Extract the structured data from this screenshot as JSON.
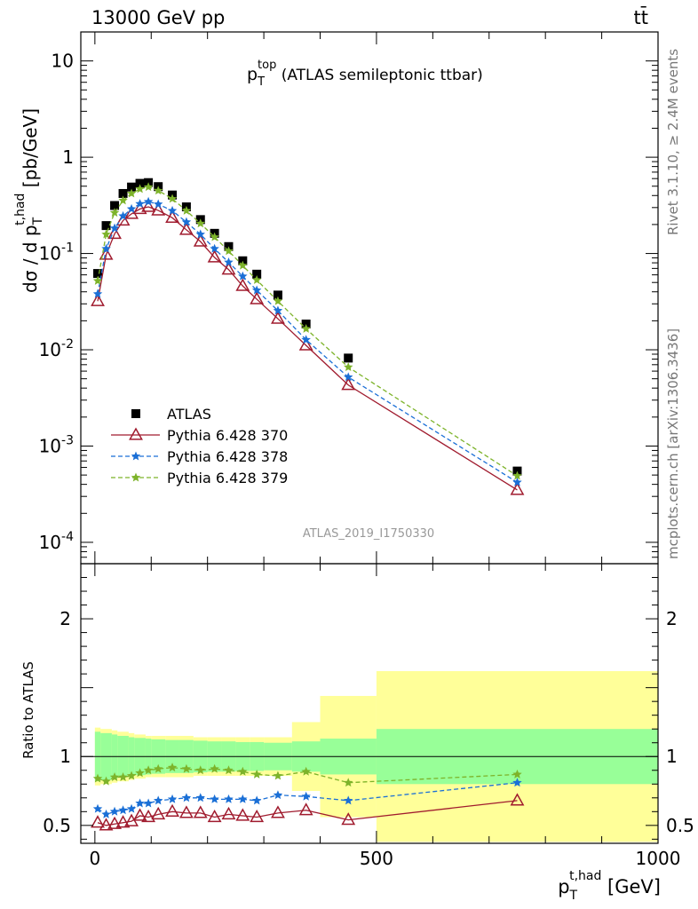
{
  "header": {
    "left": "13000 GeV pp",
    "right": "tt̄"
  },
  "side_text": {
    "upper": "Rivet 3.1.10, ≥ 2.4M events",
    "lower": "mcplots.cern.ch [arXiv:1306.3436]"
  },
  "watermark": "ATLAS_2019_I1750330",
  "colors": {
    "atlas": "#000000",
    "p370": "#a01b2e",
    "p378": "#1a6fd6",
    "p379": "#7db32a",
    "band_stat": "#98ff98",
    "band_total": "#ffff99"
  },
  "chart_data": [
    {
      "type": "scatter",
      "title": "p_T^top (ATLAS semileptonic ttbar)",
      "title_parts": {
        "p": "p",
        "sub": "T",
        "sup": "top",
        "rest": " (ATLAS semileptonic ttbar)"
      },
      "ylabel": "dσ / d p_T^t,had [pb/GeV]",
      "y_scale": "log",
      "ylim": [
        6e-05,
        20
      ],
      "xlim": [
        -25,
        1000
      ],
      "y_ticks": [
        {
          "v": 0.0001,
          "base": "10",
          "exp": "-4"
        },
        {
          "v": 0.001,
          "base": "10",
          "exp": "-3"
        },
        {
          "v": 0.01,
          "base": "10",
          "exp": "-2"
        },
        {
          "v": 0.1,
          "base": "10",
          "exp": "-1"
        },
        {
          "v": 1,
          "base": "1",
          "exp": ""
        },
        {
          "v": 10,
          "base": "10",
          "exp": ""
        }
      ],
      "x": [
        5,
        20,
        35,
        50,
        65,
        80,
        95,
        112.5,
        137.5,
        162.5,
        187.5,
        212.5,
        237.5,
        262.5,
        287.5,
        325,
        375,
        450,
        750
      ],
      "series": [
        {
          "name": "ATLAS",
          "style": "markers-square",
          "values": [
            0.062,
            0.195,
            0.315,
            0.42,
            0.49,
            0.535,
            0.545,
            0.495,
            0.405,
            0.305,
            0.225,
            0.162,
            0.118,
            0.084,
            0.061,
            0.037,
            0.0185,
            0.0082,
            0.00055
          ]
        },
        {
          "name": "Pythia 6.428 370",
          "style": "solid-triangle",
          "values": [
            0.032,
            0.097,
            0.16,
            0.22,
            0.258,
            0.29,
            0.305,
            0.28,
            0.235,
            0.176,
            0.133,
            0.091,
            0.068,
            0.046,
            0.0335,
            0.021,
            0.0111,
            0.0043,
            0.00035
          ]
        },
        {
          "name": "Pythia 6.428 378",
          "style": "dashed-star",
          "values": [
            0.038,
            0.112,
            0.183,
            0.245,
            0.29,
            0.328,
            0.345,
            0.325,
            0.278,
            0.212,
            0.158,
            0.112,
            0.081,
            0.058,
            0.0415,
            0.0255,
            0.0127,
            0.0052,
            0.00042
          ]
        },
        {
          "name": "Pythia 6.428 379",
          "style": "dashed-star",
          "values": [
            0.052,
            0.158,
            0.265,
            0.355,
            0.42,
            0.468,
            0.49,
            0.45,
            0.37,
            0.278,
            0.205,
            0.148,
            0.106,
            0.075,
            0.053,
            0.032,
            0.0165,
            0.0066,
            0.00049
          ]
        }
      ],
      "legend": {
        "position": "middle-left",
        "entries": [
          "ATLAS",
          "Pythia 6.428 370",
          "Pythia 6.428 378",
          "Pythia 6.428 379"
        ]
      }
    },
    {
      "type": "line",
      "ylabel": "Ratio to ATLAS",
      "ylim": [
        0.37,
        2.4
      ],
      "xlim": [
        -25,
        1000
      ],
      "xlabel": "p_T^t,had [GeV]",
      "xlabel_parts": {
        "p": "p",
        "sub": "T",
        "sup": "t,had",
        "rest": " [GeV]"
      },
      "x_ticks": [
        0,
        500,
        1000
      ],
      "y_ticks": [
        0.5,
        1,
        2
      ],
      "reference": 1,
      "bands": {
        "edges": [
          0,
          10,
          30,
          40,
          60,
          70,
          90,
          100,
          125,
          150,
          175,
          200,
          225,
          250,
          275,
          300,
          350,
          400,
          500,
          1000
        ],
        "stat": [
          0.18,
          0.17,
          0.16,
          0.15,
          0.14,
          0.135,
          0.13,
          0.125,
          0.12,
          0.12,
          0.115,
          0.11,
          0.11,
          0.105,
          0.105,
          0.1,
          0.11,
          0.13,
          0.2
        ],
        "total": [
          0.21,
          0.2,
          0.19,
          0.18,
          0.17,
          0.16,
          0.15,
          0.15,
          0.15,
          0.15,
          0.14,
          0.14,
          0.14,
          0.14,
          0.14,
          0.14,
          0.25,
          0.44,
          0.62
        ]
      },
      "x": [
        5,
        20,
        35,
        50,
        65,
        80,
        95,
        112.5,
        137.5,
        162.5,
        187.5,
        212.5,
        237.5,
        262.5,
        287.5,
        325,
        375,
        450,
        750
      ],
      "series": [
        {
          "name": "Pythia 6.428 370",
          "values": [
            0.52,
            0.5,
            0.51,
            0.52,
            0.53,
            0.57,
            0.56,
            0.58,
            0.6,
            0.59,
            0.59,
            0.56,
            0.58,
            0.57,
            0.56,
            0.59,
            0.61,
            0.54,
            0.68
          ]
        },
        {
          "name": "Pythia 6.428 378",
          "values": [
            0.62,
            0.58,
            0.6,
            0.61,
            0.62,
            0.66,
            0.66,
            0.68,
            0.69,
            0.7,
            0.7,
            0.69,
            0.69,
            0.69,
            0.68,
            0.72,
            0.71,
            0.68,
            0.81
          ]
        },
        {
          "name": "Pythia 6.428 379",
          "values": [
            0.84,
            0.82,
            0.85,
            0.85,
            0.86,
            0.88,
            0.9,
            0.91,
            0.92,
            0.91,
            0.9,
            0.91,
            0.9,
            0.89,
            0.87,
            0.86,
            0.89,
            0.81,
            0.87
          ]
        }
      ]
    }
  ]
}
